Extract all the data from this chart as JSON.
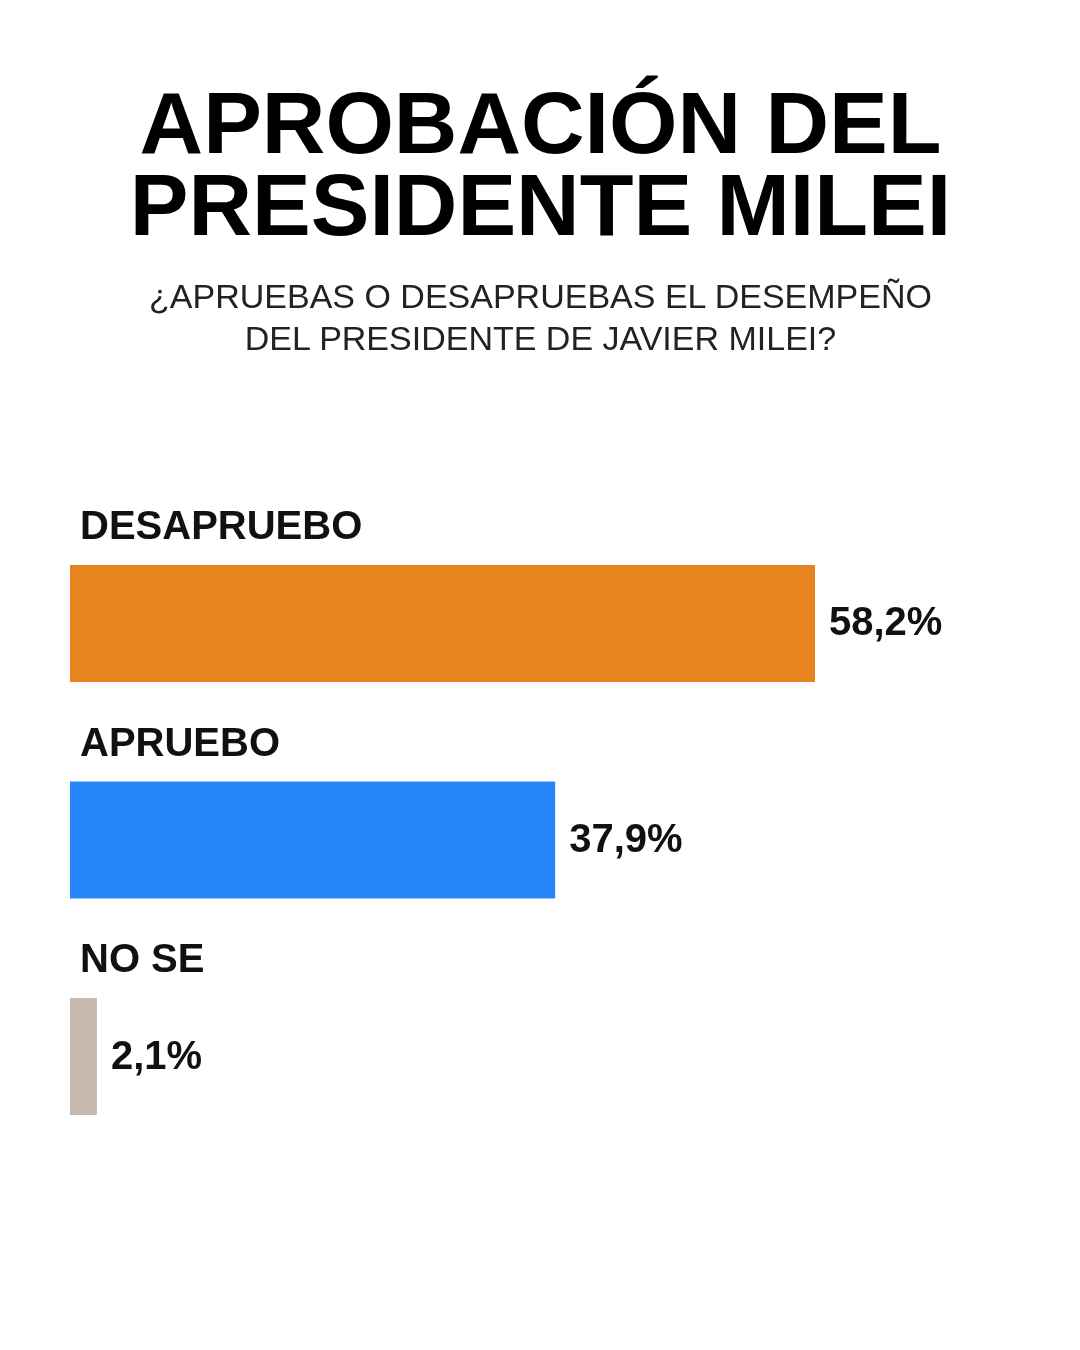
{
  "chart_data": {
    "type": "bar",
    "orientation": "horizontal",
    "title": "APROBACIÓN DEL PRESIDENTE MILEI",
    "subtitle": "¿APRUEBAS O DESAPRUEBAS EL DESEMPEÑO DEL PRESIDENTE DE JAVIER MILEI?",
    "categories": [
      "DESAPRUEBO",
      "APRUEBO",
      "NO SE"
    ],
    "values": [
      58.2,
      37.9,
      2.1
    ],
    "colors": [
      "#e8841f",
      "#2787fa",
      "#c8b8ae"
    ],
    "value_labels": [
      "58,2%",
      "37,9%",
      "2,1%"
    ]
  }
}
